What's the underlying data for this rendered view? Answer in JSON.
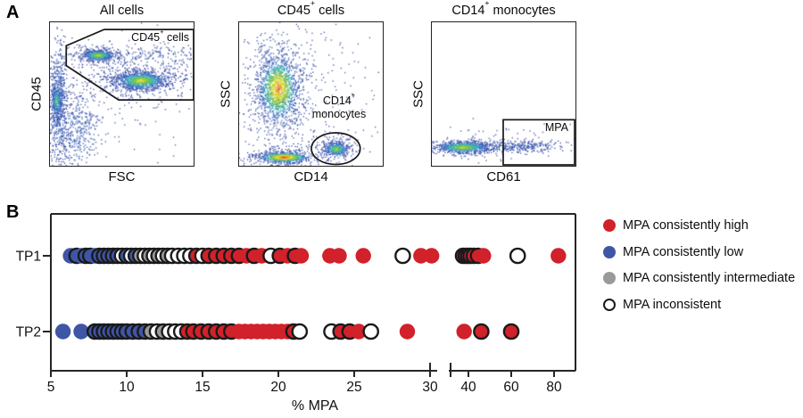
{
  "figure": {
    "panel_a": {
      "label": "A",
      "plots": [
        {
          "title": {
            "pre": "All cells",
            "sup": "",
            "post": ""
          },
          "ylabel": "CD45",
          "xlabel": "FSC",
          "gate": {
            "pre": "CD45",
            "sup": "+",
            "post": " cells"
          },
          "gate_line2": ""
        },
        {
          "title": {
            "pre": "CD45",
            "sup": "+",
            "post": " cells"
          },
          "ylabel": "SSC",
          "xlabel": "CD14",
          "gate": {
            "pre": "CD14",
            "sup": "+",
            "post": ""
          },
          "gate_line2": "monocytes"
        },
        {
          "title": {
            "pre": "CD14",
            "sup": "+",
            "post": " monocytes"
          },
          "ylabel": "SSC",
          "xlabel": "CD61",
          "gate": {
            "pre": "MPA",
            "sup": "",
            "post": ""
          },
          "gate_line2": ""
        }
      ]
    },
    "panel_b": {
      "label": "B"
    }
  },
  "chart_data": {
    "type": "scatter",
    "xlabel": "% MPA",
    "rows": [
      "TP1",
      "TP2"
    ],
    "x_ticks_left": [
      5,
      10,
      15,
      20,
      25,
      30
    ],
    "x_ticks_right": [
      40,
      60,
      80
    ],
    "axis_break": {
      "between": [
        30,
        40
      ]
    },
    "x_range": [
      5,
      90
    ],
    "colors": {
      "high": "#d1212a",
      "low": "#3f55a6",
      "intermediate": "#9a9a9c",
      "open_fill": "#ffffff",
      "outline": "#1a1a1a"
    },
    "legend": [
      {
        "label": "MPA consistently high",
        "style": "r"
      },
      {
        "label": "MPA consistently low",
        "style": "b"
      },
      {
        "label": "MPA consistently intermediate",
        "style": "g"
      },
      {
        "label": "MPA inconsistent",
        "style": "o"
      }
    ],
    "style_key": {
      "r": "red filled (consistently high)",
      "ro": "red filled, black outline",
      "b": "blue filled (consistently low)",
      "bo": "blue filled, black outline",
      "g": "gray filled (consistently intermediate)",
      "go": "gray filled, black outline",
      "o": "open white circle (inconsistent)"
    },
    "series": [
      {
        "row": "TP1",
        "points": [
          [
            6.3,
            "b"
          ],
          [
            6.7,
            "bo"
          ],
          [
            7.0,
            "b"
          ],
          [
            7.3,
            "bo"
          ],
          [
            7.6,
            "bo"
          ],
          [
            7.9,
            "b"
          ],
          [
            8.2,
            "bo"
          ],
          [
            8.5,
            "bo"
          ],
          [
            8.8,
            "bo"
          ],
          [
            9.1,
            "bo"
          ],
          [
            9.4,
            "bo"
          ],
          [
            9.7,
            "o"
          ],
          [
            10.0,
            "bo"
          ],
          [
            10.3,
            "o"
          ],
          [
            10.6,
            "bo"
          ],
          [
            10.9,
            "go"
          ],
          [
            11.2,
            "o"
          ],
          [
            11.5,
            "go"
          ],
          [
            11.8,
            "o"
          ],
          [
            12.1,
            "go"
          ],
          [
            12.4,
            "o"
          ],
          [
            12.7,
            "go"
          ],
          [
            13.0,
            "o"
          ],
          [
            13.4,
            "o"
          ],
          [
            13.8,
            "o"
          ],
          [
            14.2,
            "o"
          ],
          [
            14.6,
            "ro"
          ],
          [
            15.0,
            "o"
          ],
          [
            15.4,
            "ro"
          ],
          [
            15.9,
            "ro"
          ],
          [
            16.4,
            "ro"
          ],
          [
            16.9,
            "ro"
          ],
          [
            17.4,
            "ro"
          ],
          [
            17.9,
            "r"
          ],
          [
            18.4,
            "ro"
          ],
          [
            18.9,
            "r"
          ],
          [
            19.5,
            "o"
          ],
          [
            20.1,
            "ro"
          ],
          [
            20.6,
            "r"
          ],
          [
            21.1,
            "ro"
          ],
          [
            21.5,
            "r"
          ],
          [
            23.4,
            "r"
          ],
          [
            24.0,
            "r"
          ],
          [
            25.6,
            "r"
          ],
          [
            28.2,
            "o"
          ],
          [
            29.4,
            "r"
          ],
          [
            30.1,
            "r"
          ],
          [
            37.5,
            "ro"
          ],
          [
            38.8,
            "ro"
          ],
          [
            40.0,
            "o"
          ],
          [
            41.0,
            "ro"
          ],
          [
            42.5,
            "ro"
          ],
          [
            44.5,
            "ro"
          ],
          [
            47.0,
            "r"
          ],
          [
            63.0,
            "o"
          ],
          [
            82.0,
            "r"
          ]
        ]
      },
      {
        "row": "TP2",
        "points": [
          [
            5.8,
            "b"
          ],
          [
            7.0,
            "b"
          ],
          [
            7.9,
            "bo"
          ],
          [
            8.2,
            "bo"
          ],
          [
            8.5,
            "bo"
          ],
          [
            8.8,
            "bo"
          ],
          [
            9.1,
            "bo"
          ],
          [
            9.4,
            "bo"
          ],
          [
            9.7,
            "bo"
          ],
          [
            10.0,
            "bo"
          ],
          [
            10.4,
            "bo"
          ],
          [
            10.8,
            "bo"
          ],
          [
            11.2,
            "bo"
          ],
          [
            11.6,
            "go"
          ],
          [
            12.0,
            "o"
          ],
          [
            12.4,
            "go"
          ],
          [
            12.8,
            "o"
          ],
          [
            13.2,
            "o"
          ],
          [
            13.6,
            "o"
          ],
          [
            14.0,
            "ro"
          ],
          [
            14.4,
            "ro"
          ],
          [
            14.9,
            "ro"
          ],
          [
            15.4,
            "ro"
          ],
          [
            15.9,
            "ro"
          ],
          [
            16.4,
            "ro"
          ],
          [
            16.9,
            "ro"
          ],
          [
            17.4,
            "r"
          ],
          [
            17.8,
            "r"
          ],
          [
            18.2,
            "r"
          ],
          [
            18.6,
            "r"
          ],
          [
            19.0,
            "r"
          ],
          [
            19.4,
            "r"
          ],
          [
            19.8,
            "r"
          ],
          [
            20.2,
            "r"
          ],
          [
            20.6,
            "r"
          ],
          [
            21.0,
            "ro"
          ],
          [
            21.4,
            "o"
          ],
          [
            23.5,
            "o"
          ],
          [
            24.1,
            "ro"
          ],
          [
            24.7,
            "ro"
          ],
          [
            25.3,
            "r"
          ],
          [
            26.1,
            "o"
          ],
          [
            28.5,
            "r"
          ],
          [
            38.0,
            "r"
          ],
          [
            46.0,
            "ro"
          ],
          [
            60.0,
            "ro"
          ]
        ]
      }
    ]
  }
}
